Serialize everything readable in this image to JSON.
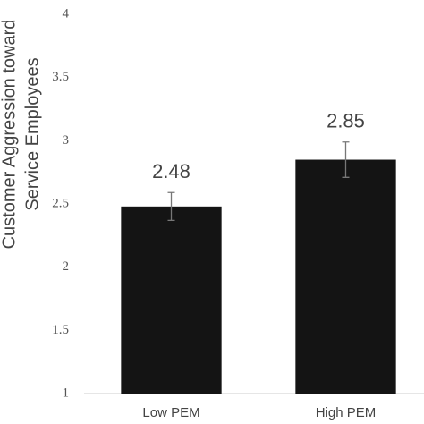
{
  "chart_data": {
    "type": "bar",
    "y_label": [
      "Customer Aggression toward",
      "Service Employees"
    ],
    "categories": [
      "Low PEM",
      "High PEM"
    ],
    "values": [
      2.48,
      2.85
    ],
    "errors": [
      0.11,
      0.14
    ],
    "color": "#141414",
    "ylim": [
      1,
      4
    ],
    "yticks": [
      1,
      1.5,
      2,
      2.5,
      3,
      3.5,
      4
    ],
    "grid": false
  }
}
